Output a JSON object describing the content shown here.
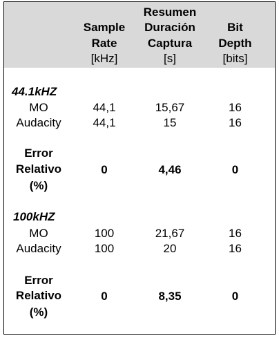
{
  "columns": {
    "sample_rate": {
      "line1": "Sample",
      "line2": "Rate",
      "unit": "[kHz]"
    },
    "duration": {
      "line1": "Resumen",
      "line2": "Duración",
      "line3": "Captura",
      "unit": "[s]"
    },
    "bit_depth": {
      "line1": "Bit",
      "line2": "Depth",
      "unit": "[bits]"
    }
  },
  "sections": [
    {
      "title": "44.1kHZ",
      "rows": [
        {
          "label": "MO",
          "sample_rate": "44,1",
          "duration": "15,67",
          "bit_depth": "16"
        },
        {
          "label": "Audacity",
          "sample_rate": "44,1",
          "duration": "15",
          "bit_depth": "16"
        }
      ],
      "error": {
        "line1": "Error",
        "line2": "Relativo",
        "line3": "(%)",
        "sample_rate": "0",
        "duration": "4,46",
        "bit_depth": "0"
      }
    },
    {
      "title": "100kHZ",
      "rows": [
        {
          "label": "MO",
          "sample_rate": "100",
          "duration": "21,67",
          "bit_depth": "16"
        },
        {
          "label": "Audacity",
          "sample_rate": "100",
          "duration": "20",
          "bit_depth": "16"
        }
      ],
      "error": {
        "line1": "Error",
        "line2": "Relativo",
        "line3": "(%)",
        "sample_rate": "0",
        "duration": "8,35",
        "bit_depth": "0"
      }
    }
  ]
}
